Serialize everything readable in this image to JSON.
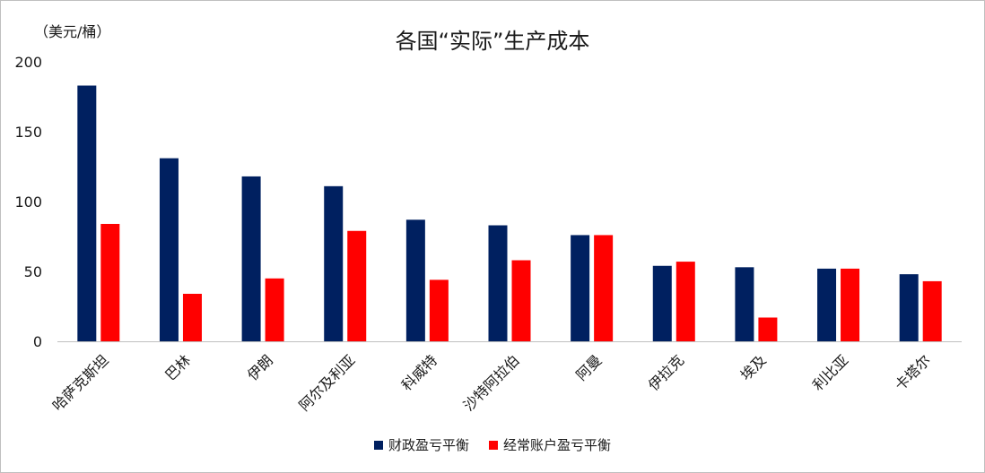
{
  "chart_data": {
    "type": "bar",
    "title": "各国“实际”生产成本",
    "unit_label": "（美元/桶）",
    "ylim": [
      0,
      200
    ],
    "yticks": [
      0,
      50,
      100,
      150,
      200
    ],
    "categories": [
      "哈萨克斯坦",
      "巴林",
      "伊朗",
      "阿尔及利亚",
      "科威特",
      "沙特阿拉伯",
      "阿曼",
      "伊拉克",
      "埃及",
      "利比亚",
      "卡塔尔"
    ],
    "series": [
      {
        "name": "财政盈亏平衡",
        "color": "#002060",
        "values": [
          183,
          131,
          118,
          111,
          87,
          83,
          76,
          54,
          53,
          52,
          48
        ]
      },
      {
        "name": "经常账户盈亏平衡",
        "color": "#ff0000",
        "values": [
          84,
          34,
          45,
          79,
          44,
          58,
          76,
          57,
          17,
          52,
          43
        ]
      }
    ],
    "legend_position": "bottom",
    "grid": false
  }
}
